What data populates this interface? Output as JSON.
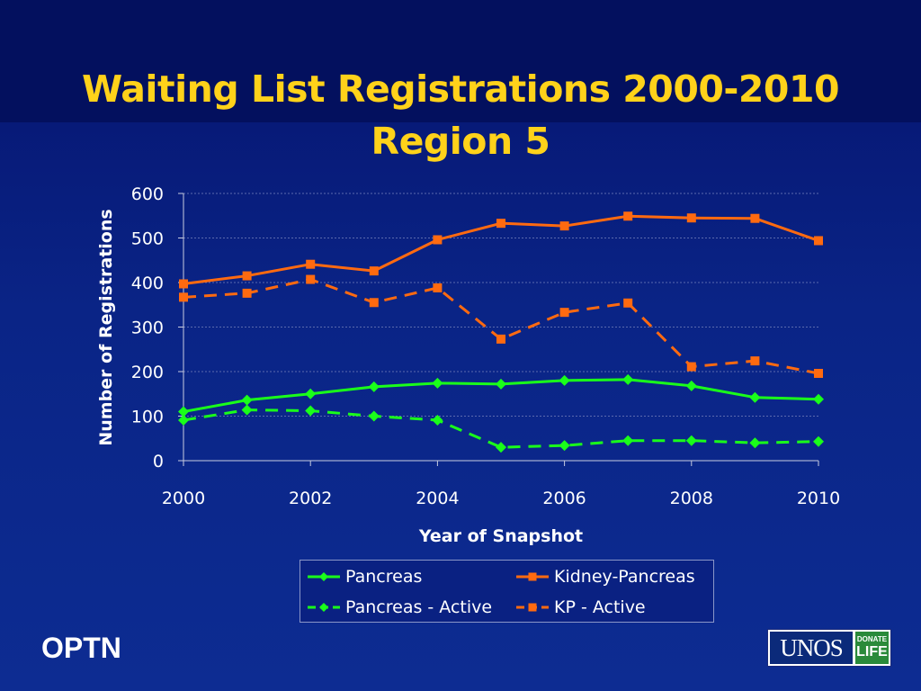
{
  "slide": {
    "title_line1": "Waiting List Registrations 2000-2010",
    "title_line2": "Region 5",
    "footer_left": "OPTN",
    "logo_text": "UNOS",
    "logo_badge_top": "DONATE",
    "logo_badge_bottom": "LIFE"
  },
  "colors": {
    "pancreas": "#1aff1a",
    "kidney_pancreas": "#ff6a10",
    "title": "#ffd21a"
  },
  "chart_data": {
    "type": "line",
    "xlabel": "Year of Snapshot",
    "ylabel": "Number of Registrations",
    "xlim": [
      2000,
      2010
    ],
    "ylim": [
      0,
      600
    ],
    "x_ticks": [
      2000,
      2002,
      2004,
      2006,
      2008,
      2010
    ],
    "y_ticks": [
      0,
      100,
      200,
      300,
      400,
      500,
      600
    ],
    "grid": true,
    "legend_position": "bottom",
    "x": [
      2000,
      2001,
      2002,
      2003,
      2004,
      2005,
      2006,
      2007,
      2008,
      2009,
      2010
    ],
    "series": [
      {
        "name": "Pancreas",
        "color": "#1aff1a",
        "style": "solid",
        "marker": "diamond",
        "values": [
          110,
          136,
          150,
          166,
          174,
          172,
          180,
          182,
          168,
          142,
          138
        ]
      },
      {
        "name": "Kidney-Pancreas",
        "color": "#ff6a10",
        "style": "solid",
        "marker": "square",
        "values": [
          397,
          415,
          441,
          426,
          496,
          533,
          527,
          549,
          545,
          544,
          494
        ]
      },
      {
        "name": "Pancreas - Active",
        "color": "#1aff1a",
        "style": "dashed",
        "marker": "diamond",
        "values": [
          91,
          114,
          112,
          100,
          91,
          30,
          34,
          45,
          45,
          40,
          43
        ]
      },
      {
        "name": "KP - Active",
        "color": "#ff6a10",
        "style": "dashed",
        "marker": "square",
        "values": [
          367,
          376,
          407,
          355,
          388,
          273,
          333,
          354,
          211,
          224,
          196
        ]
      }
    ]
  }
}
